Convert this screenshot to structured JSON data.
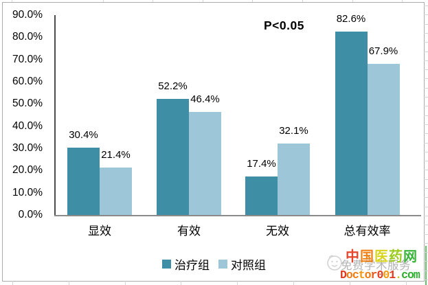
{
  "chart_data": {
    "type": "bar",
    "title": "",
    "categories": [
      "显效",
      "有效",
      "无效",
      "总有效率"
    ],
    "series": [
      {
        "name": "治疗组",
        "color": "#3E8EA6",
        "values": [
          30.4,
          52.2,
          17.4,
          82.6
        ],
        "labels": [
          "30.4%",
          "52.2%",
          "17.4%",
          "82.6%"
        ]
      },
      {
        "name": "对照组",
        "color": "#9DC6D9",
        "values": [
          21.4,
          46.4,
          32.1,
          67.9
        ],
        "labels": [
          "21.4%",
          "46.4%",
          "32.1%",
          "67.9%"
        ]
      }
    ],
    "xlabel": "",
    "ylabel": "",
    "ylim": [
      0,
      90
    ],
    "ytick_step": 10,
    "y_tick_labels": [
      "90.0%",
      "80.0%",
      "70.0%",
      "60.0%",
      "50.0%",
      "40.0%",
      "30.0%",
      "20.0%",
      "10.0%",
      "0.0%"
    ],
    "annotation": "P<0.05",
    "grid": false,
    "legend_position": "bottom",
    "data_labels": "outside-end"
  },
  "legend": {
    "items": [
      {
        "label": "治疗组",
        "color": "#3E8EA6"
      },
      {
        "label": "对照组",
        "color": "#9DC6D9"
      }
    ]
  },
  "annotation": {
    "text": "P<0.05"
  },
  "watermark": {
    "site_name": "中国医药网",
    "site_chars": [
      {
        "ch": "中",
        "color": "#e6452b"
      },
      {
        "ch": "国",
        "color": "#ef8318"
      },
      {
        "ch": "医",
        "color": "#d9d41d"
      },
      {
        "ch": "药",
        "color": "#9ccb1d"
      },
      {
        "ch": "网",
        "color": "#3ab43a"
      }
    ],
    "slogan": "免费学术服务",
    "domain": "Doctor001.com",
    "domain_chars": [
      {
        "ch": "D",
        "color": "#e03a20"
      },
      {
        "ch": "o",
        "color": "#ef7c12"
      },
      {
        "ch": "c",
        "color": "#ef7c12"
      },
      {
        "ch": "t",
        "color": "#f2990b"
      },
      {
        "ch": "o",
        "color": "#ef7c12"
      },
      {
        "ch": "r",
        "color": "#e8591b"
      },
      {
        "ch": "0",
        "color": "#e03a20"
      },
      {
        "ch": "0",
        "color": "#f2990b"
      },
      {
        "ch": "1",
        "color": "#e03a20"
      },
      {
        "ch": ".",
        "color": "#d2c513"
      },
      {
        "ch": "c",
        "color": "#2fae2f"
      },
      {
        "ch": "o",
        "color": "#2fae2f"
      },
      {
        "ch": "m",
        "color": "#2fae2f"
      }
    ],
    "icon": "smiley-doodle-icon"
  }
}
